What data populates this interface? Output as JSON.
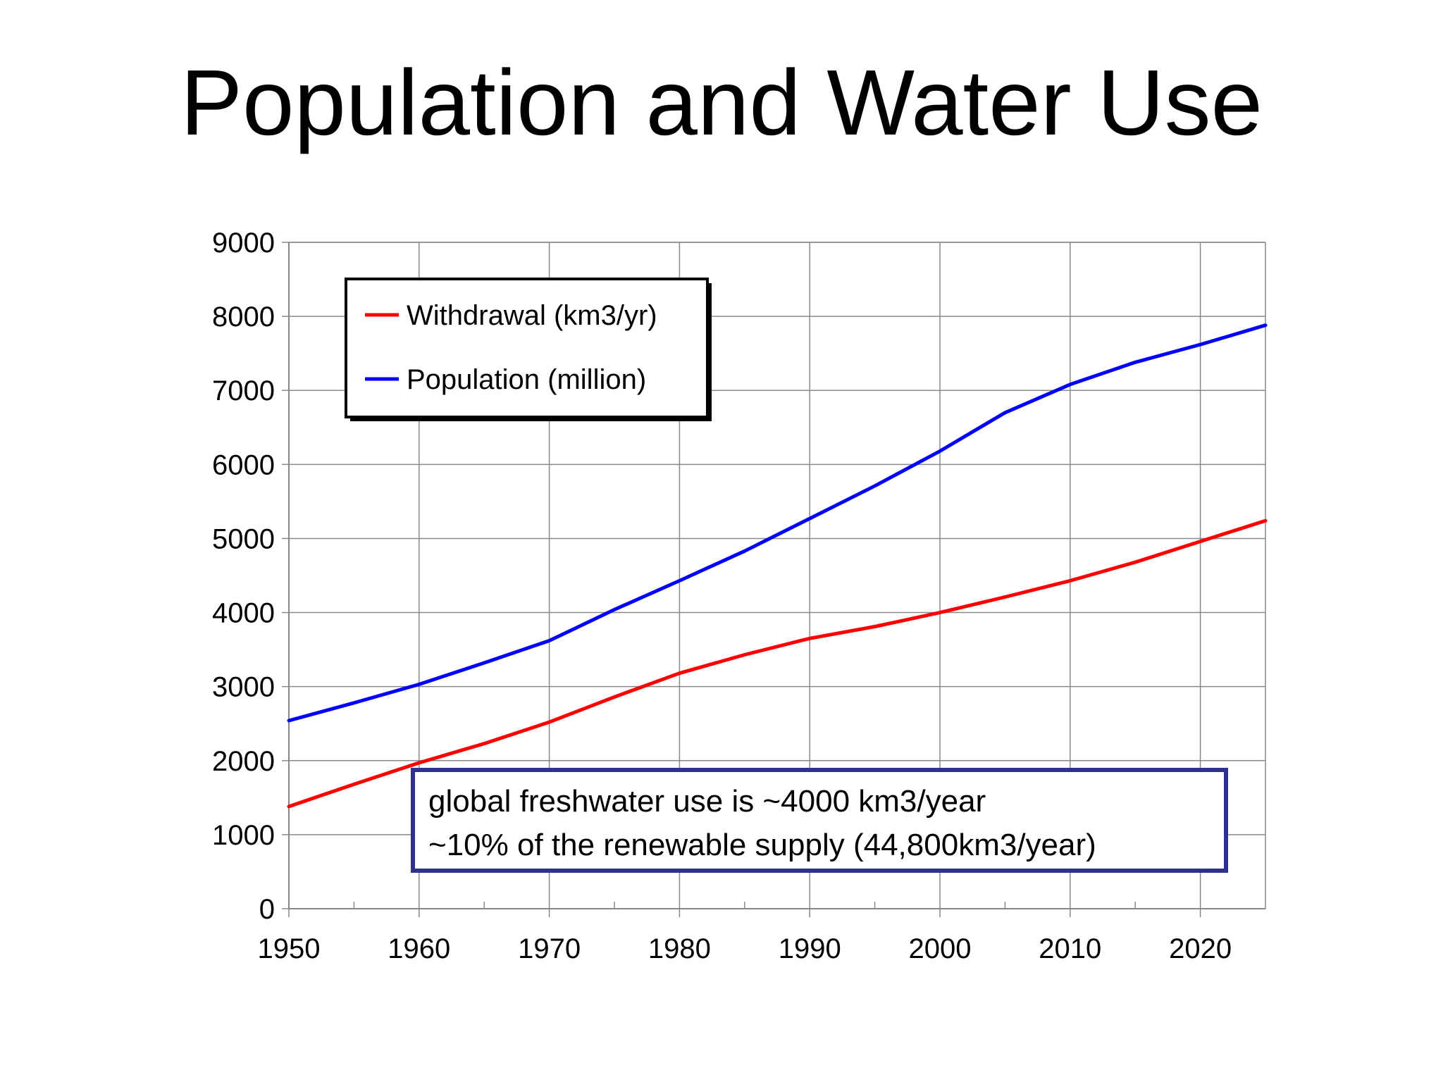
{
  "title": "Population and Water Use",
  "chart_data": {
    "type": "line",
    "xlim": [
      1950,
      2025
    ],
    "ylim": [
      0,
      9000
    ],
    "x_ticks": [
      1950,
      1960,
      1970,
      1980,
      1990,
      2000,
      2010,
      2020
    ],
    "y_ticks": [
      0,
      1000,
      2000,
      3000,
      4000,
      5000,
      6000,
      7000,
      8000,
      9000
    ],
    "grid": true,
    "legend_position": "top-left",
    "series": [
      {
        "name": "Withdrawal (km3/yr)",
        "color": "#ff0000",
        "x": [
          1950,
          1955,
          1960,
          1965,
          1970,
          1975,
          1980,
          1985,
          1990,
          1995,
          2000,
          2005,
          2010,
          2015,
          2020,
          2025
        ],
        "y": [
          1380,
          1680,
          1970,
          2230,
          2520,
          2860,
          3180,
          3430,
          3650,
          3810,
          4000,
          4210,
          4430,
          4680,
          4960,
          5240
        ]
      },
      {
        "name": "Population (million)",
        "color": "#0000ff",
        "x": [
          1950,
          1955,
          1960,
          1965,
          1970,
          1975,
          1980,
          1985,
          1990,
          1995,
          2000,
          2005,
          2010,
          2015,
          2020,
          2025
        ],
        "y": [
          2540,
          2780,
          3030,
          3320,
          3620,
          4040,
          4430,
          4830,
          5270,
          5710,
          6180,
          6700,
          7080,
          7380,
          7620,
          7880
        ]
      }
    ]
  },
  "note": {
    "line1": "global freshwater use is ~4000 km3/year",
    "line2": "~10% of the renewable supply (44,800km3/year)",
    "border_color": "#2e3192"
  }
}
